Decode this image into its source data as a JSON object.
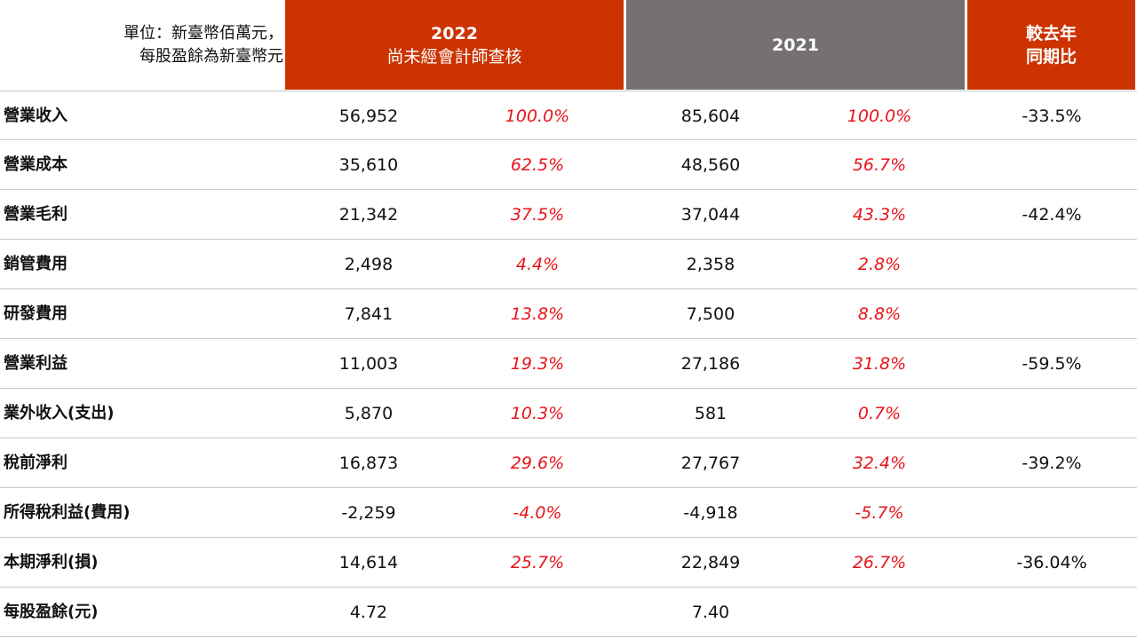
{
  "header": {
    "unit_line1": "單位：新臺幣佰萬元，",
    "unit_line2": "每股盈餘為新臺幣元",
    "col_2022_title": "2022",
    "col_2022_subtitle": "尚未經會計師查核",
    "col_2021_title": "2021",
    "col_yoy_line1": "較去年",
    "col_yoy_line2": "同期比"
  },
  "colors": {
    "header_2022": "#cc3300",
    "header_2021": "#767171",
    "header_yoy": "#cc3300",
    "percent_text": "#e8141b"
  },
  "rows": [
    {
      "label": "營業收入",
      "v2022": "56,952",
      "p2022": "100.0%",
      "v2021": "85,604",
      "p2021": "100.0%",
      "yoy": "-33.5%"
    },
    {
      "label": "營業成本",
      "v2022": "35,610",
      "p2022": "62.5%",
      "v2021": "48,560",
      "p2021": "56.7%",
      "yoy": ""
    },
    {
      "label": "營業毛利",
      "v2022": "21,342",
      "p2022": "37.5%",
      "v2021": "37,044",
      "p2021": "43.3%",
      "yoy": "-42.4%"
    },
    {
      "label": "銷管費用",
      "v2022": "2,498",
      "p2022": "4.4%",
      "v2021": "2,358",
      "p2021": "2.8%",
      "yoy": ""
    },
    {
      "label": "研發費用",
      "v2022": "7,841",
      "p2022": "13.8%",
      "v2021": "7,500",
      "p2021": "8.8%",
      "yoy": ""
    },
    {
      "label": "營業利益",
      "v2022": "11,003",
      "p2022": "19.3%",
      "v2021": "27,186",
      "p2021": "31.8%",
      "yoy": "-59.5%"
    },
    {
      "label": "業外收入(支出)",
      "v2022": "5,870",
      "p2022": "10.3%",
      "v2021": "581",
      "p2021": "0.7%",
      "yoy": ""
    },
    {
      "label": "稅前淨利",
      "v2022": "16,873",
      "p2022": "29.6%",
      "v2021": "27,767",
      "p2021": "32.4%",
      "yoy": "-39.2%"
    },
    {
      "label": "所得稅利益(費用)",
      "v2022": "-2,259",
      "p2022": "-4.0%",
      "v2021": "-4,918",
      "p2021": "-5.7%",
      "yoy": ""
    },
    {
      "label": "本期淨利(損)",
      "v2022": "14,614",
      "p2022": "25.7%",
      "v2021": "22,849",
      "p2021": "26.7%",
      "yoy": "-36.04%"
    },
    {
      "label": "每股盈餘(元)",
      "v2022": "4.72",
      "p2022": "",
      "v2021": "7.40",
      "p2021": "",
      "yoy": ""
    }
  ]
}
